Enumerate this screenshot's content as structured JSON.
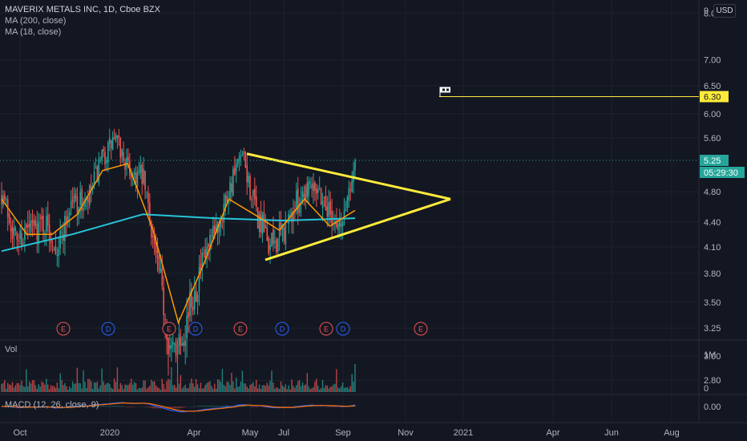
{
  "header": {
    "symbol_line": "MAVERIX METALS INC, 1D, Cboe BZX",
    "ma200_label": "MA (200, close)",
    "ma18_label": "MA (18, close)",
    "currency": "USD",
    "top_tick": "9"
  },
  "colors": {
    "background": "#131722",
    "grid": "#1e222d",
    "up": "#26a69a",
    "down": "#ef5350",
    "ma200": "#26c6da",
    "ma18": "#ff9800",
    "triangle": "#ffeb3b",
    "price_badge": "#26a69a",
    "target_badge": "#ffeb3b",
    "earnings": "#ef5350",
    "dividend": "#2962ff",
    "macd": "#2962ff",
    "signal": "#ff6d00"
  },
  "chart_data": [
    {
      "type": "candlestick",
      "title": "MAVERIX METALS INC, 1D, Cboe BZX",
      "y_ticks": [
        8.0,
        7.0,
        6.5,
        6.0,
        5.6,
        5.25,
        4.8,
        4.4,
        4.1,
        3.8,
        3.5,
        3.25,
        3.0,
        2.8
      ],
      "y_tick_labels": [
        "8.00",
        "7.00",
        "6.50",
        "6.00",
        "5.60",
        "5.25",
        "4.80",
        "4.40",
        "4.10",
        "3.80",
        "3.50",
        "3.25",
        "3.00",
        "2.80"
      ],
      "x_ticks": [
        "Oct",
        "2020",
        "Apr",
        "May",
        "Jul",
        "Sep",
        "Nov",
        "2021",
        "Apr",
        "Jun",
        "Aug"
      ],
      "x_tick_labels": [
        "Oct",
        "2020",
        "Apr",
        "May",
        "Jul",
        "Sep",
        "Nov",
        "2021",
        "Apr",
        "Jun",
        "Aug"
      ],
      "last_price": "5.25",
      "countdown": "05:29:30",
      "target_price": "6.30",
      "triangle": {
        "upper_start": [
          "May 2020",
          5.35
        ],
        "lower_start": [
          "Jun 2020",
          3.95
        ],
        "apex": [
          "Dec 2020",
          4.7
        ]
      },
      "target_line_start": "Dec 2020",
      "events": [
        {
          "type": "E",
          "date": "Nov 2019"
        },
        {
          "type": "D",
          "date": "Dec 2019"
        },
        {
          "type": "E",
          "date": "Mar 2020"
        },
        {
          "type": "D",
          "date": "Apr 2020"
        },
        {
          "type": "E",
          "date": "May 2020"
        },
        {
          "type": "D",
          "date": "Jul 2020"
        },
        {
          "type": "E",
          "date": "Aug 2020"
        },
        {
          "type": "D",
          "date": "Sep 2020"
        },
        {
          "type": "E",
          "date": "Nov 2020"
        }
      ],
      "close_path": [
        [
          "Sep 2019",
          4.8
        ],
        [
          "Oct 2019",
          4.2
        ],
        [
          "Oct 2019",
          4.3
        ],
        [
          "Nov 2019",
          4.4
        ],
        [
          "Nov 2019",
          4.1
        ],
        [
          "Dec 2019",
          4.7
        ],
        [
          "Dec 2019",
          4.6
        ],
        [
          "Jan 2020",
          5.2
        ],
        [
          "Jan 2020",
          5.6
        ],
        [
          "Feb 2020",
          5.1
        ],
        [
          "Feb 2020",
          5.0
        ],
        [
          "Mar 2020",
          3.9
        ],
        [
          "Mar 2020",
          3.0
        ],
        [
          "Apr 2020",
          3.3
        ],
        [
          "Apr 2020",
          3.8
        ],
        [
          "May 2020",
          4.2
        ],
        [
          "May 2020",
          4.8
        ],
        [
          "May 2020",
          5.3
        ],
        [
          "Jun 2020",
          4.5
        ],
        [
          "Jun 2020",
          4.1
        ],
        [
          "Jul 2020",
          4.3
        ],
        [
          "Jul 2020",
          4.7
        ],
        [
          "Aug 2020",
          5.0
        ],
        [
          "Aug 2020",
          4.6
        ],
        [
          "Sep 2020",
          4.3
        ],
        [
          "Sep 2020",
          5.25
        ]
      ],
      "ma200": [
        [
          "Sep 2019",
          4.05
        ],
        [
          "Dec 2019",
          4.25
        ],
        [
          "Feb 2020",
          4.5
        ],
        [
          "Apr 2020",
          4.45
        ],
        [
          "Jun 2020",
          4.42
        ],
        [
          "Sep 2020",
          4.45
        ]
      ],
      "ma18": [
        [
          "Sep 2019",
          4.7
        ],
        [
          "Oct 2019",
          4.25
        ],
        [
          "Nov 2019",
          4.25
        ],
        [
          "Dec 2019",
          4.5
        ],
        [
          "Jan 2020",
          5.1
        ],
        [
          "Feb 2020",
          5.2
        ],
        [
          "Mar 2020",
          4.3
        ],
        [
          "Apr 2020",
          3.3
        ],
        [
          "May 2020",
          3.9
        ],
        [
          "May 2020",
          4.7
        ],
        [
          "Jun 2020",
          4.5
        ],
        [
          "Jul 2020",
          4.3
        ],
        [
          "Aug 2020",
          4.7
        ],
        [
          "Sep 2020",
          4.35
        ],
        [
          "Sep 2020",
          4.55
        ]
      ]
    },
    {
      "type": "bar",
      "title": "Vol",
      "y_ticks": [
        "1M",
        "0"
      ]
    },
    {
      "type": "line",
      "title": "MACD (12, 26, close, 9)",
      "y_ticks": [
        "0.00"
      ]
    }
  ]
}
